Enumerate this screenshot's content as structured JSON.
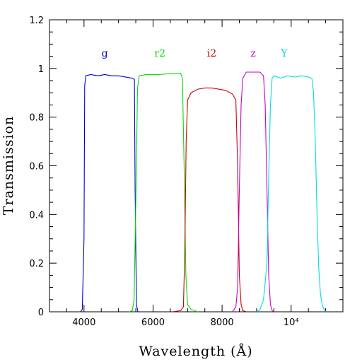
{
  "chart_data": {
    "type": "line",
    "xlabel": "Wavelength (Å)",
    "ylabel": "Transmission",
    "xlim": [
      3000,
      11500
    ],
    "ylim": [
      0,
      1.2
    ],
    "x_ticks": [
      {
        "value": 4000,
        "label": "4000"
      },
      {
        "value": 6000,
        "label": "6000"
      },
      {
        "value": 8000,
        "label": "8000"
      },
      {
        "value": 10000,
        "label": "10⁴"
      }
    ],
    "y_ticks": [
      {
        "value": 0,
        "label": "0"
      },
      {
        "value": 0.2,
        "label": "0.2"
      },
      {
        "value": 0.4,
        "label": "0.4"
      },
      {
        "value": 0.6,
        "label": "0.6"
      },
      {
        "value": 0.8,
        "label": "0.8"
      },
      {
        "value": 1.0,
        "label": "1"
      },
      {
        "value": 1.2,
        "label": "1.2"
      }
    ],
    "series": [
      {
        "name": "g",
        "color": "#0000cc",
        "label_x": 4600,
        "points": [
          [
            3900,
            0
          ],
          [
            3950,
            0.01
          ],
          [
            4000,
            0.3
          ],
          [
            4020,
            0.93
          ],
          [
            4050,
            0.97
          ],
          [
            4200,
            0.975
          ],
          [
            4400,
            0.97
          ],
          [
            4600,
            0.975
          ],
          [
            4800,
            0.97
          ],
          [
            5000,
            0.97
          ],
          [
            5200,
            0.965
          ],
          [
            5400,
            0.96
          ],
          [
            5460,
            0.955
          ],
          [
            5480,
            0.5
          ],
          [
            5520,
            0.03
          ],
          [
            5560,
            0
          ]
        ]
      },
      {
        "name": "r2",
        "color": "#00dd00",
        "label_x": 6200,
        "points": [
          [
            5300,
            0
          ],
          [
            5400,
            0.005
          ],
          [
            5450,
            0.05
          ],
          [
            5500,
            0.45
          ],
          [
            5550,
            0.92
          ],
          [
            5600,
            0.97
          ],
          [
            5800,
            0.975
          ],
          [
            6000,
            0.975
          ],
          [
            6200,
            0.975
          ],
          [
            6400,
            0.978
          ],
          [
            6600,
            0.978
          ],
          [
            6800,
            0.98
          ],
          [
            6850,
            0.96
          ],
          [
            6900,
            0.6
          ],
          [
            6950,
            0.15
          ],
          [
            7000,
            0.03
          ],
          [
            7100,
            0.01
          ],
          [
            7300,
            0
          ]
        ]
      },
      {
        "name": "i2",
        "color": "#cc0000",
        "label_x": 7700,
        "points": [
          [
            6550,
            0
          ],
          [
            6800,
            0.005
          ],
          [
            6880,
            0.02
          ],
          [
            6920,
            0.25
          ],
          [
            6960,
            0.7
          ],
          [
            7000,
            0.87
          ],
          [
            7100,
            0.9
          ],
          [
            7300,
            0.915
          ],
          [
            7500,
            0.92
          ],
          [
            7700,
            0.92
          ],
          [
            7900,
            0.915
          ],
          [
            8100,
            0.91
          ],
          [
            8300,
            0.895
          ],
          [
            8400,
            0.87
          ],
          [
            8450,
            0.6
          ],
          [
            8500,
            0.15
          ],
          [
            8550,
            0.03
          ],
          [
            8600,
            0.005
          ],
          [
            8700,
            0
          ]
        ]
      },
      {
        "name": "z",
        "color": "#cc00cc",
        "label_x": 8900,
        "points": [
          [
            8300,
            0
          ],
          [
            8400,
            0.02
          ],
          [
            8450,
            0.1
          ],
          [
            8500,
            0.5
          ],
          [
            8550,
            0.85
          ],
          [
            8600,
            0.96
          ],
          [
            8700,
            0.985
          ],
          [
            8900,
            0.985
          ],
          [
            9100,
            0.985
          ],
          [
            9200,
            0.97
          ],
          [
            9250,
            0.85
          ],
          [
            9300,
            0.5
          ],
          [
            9350,
            0.15
          ],
          [
            9400,
            0.03
          ],
          [
            9450,
            0.005
          ],
          [
            9500,
            0
          ]
        ]
      },
      {
        "name": "Y",
        "color": "#00dddd",
        "label_x": 9800,
        "points": [
          [
            9000,
            0
          ],
          [
            9100,
            0.01
          ],
          [
            9200,
            0.05
          ],
          [
            9300,
            0.2
          ],
          [
            9350,
            0.55
          ],
          [
            9400,
            0.85
          ],
          [
            9450,
            0.96
          ],
          [
            9500,
            0.97
          ],
          [
            9700,
            0.96
          ],
          [
            9900,
            0.97
          ],
          [
            10100,
            0.965
          ],
          [
            10300,
            0.97
          ],
          [
            10500,
            0.965
          ],
          [
            10600,
            0.96
          ],
          [
            10650,
            0.9
          ],
          [
            10700,
            0.7
          ],
          [
            10750,
            0.4
          ],
          [
            10800,
            0.18
          ],
          [
            10850,
            0.07
          ],
          [
            10900,
            0.03
          ],
          [
            10950,
            0.01
          ],
          [
            11000,
            0
          ]
        ]
      }
    ]
  }
}
